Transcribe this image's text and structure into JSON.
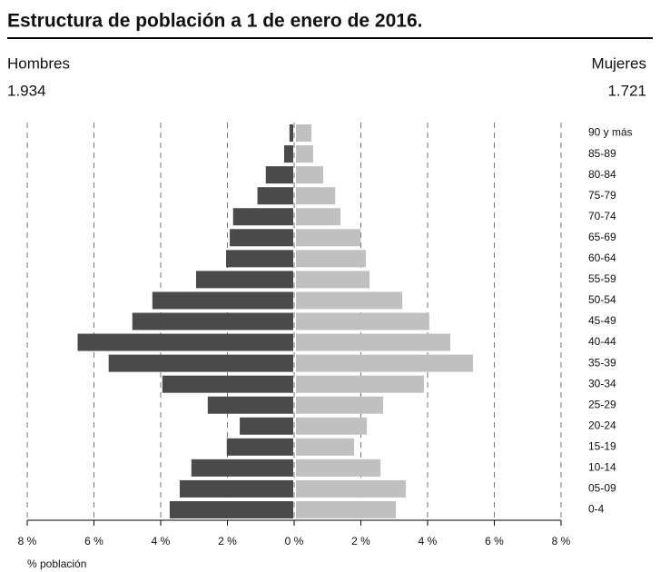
{
  "chart_data": {
    "type": "pyramid",
    "title": "Estructura de población a 1 de enero de 2016.",
    "xlabel": "% población",
    "categories": [
      "90 y más",
      "85-89",
      "80-84",
      "75-79",
      "70-74",
      "65-69",
      "60-64",
      "55-59",
      "50-54",
      "45-49",
      "40-44",
      "35-39",
      "30-34",
      "25-29",
      "20-24",
      "15-19",
      "10-14",
      "05-09",
      "0-4"
    ],
    "series": [
      {
        "name": "Hombres",
        "color": "#4a4a4a",
        "side": "left",
        "total": 1934,
        "total_label": "1.934",
        "values": [
          0.14,
          0.3,
          0.85,
          1.1,
          1.83,
          1.93,
          2.04,
          2.94,
          4.25,
          4.85,
          6.49,
          5.56,
          3.95,
          2.59,
          1.63,
          2.02,
          3.08,
          3.43,
          3.73
        ]
      },
      {
        "name": "Mujeres",
        "color": "#c0c0c0",
        "side": "right",
        "total": 1721,
        "total_label": "1.721",
        "values": [
          0.52,
          0.57,
          0.87,
          1.23,
          1.39,
          1.99,
          2.15,
          2.26,
          3.24,
          4.05,
          4.68,
          5.36,
          3.89,
          2.67,
          2.18,
          1.8,
          2.59,
          3.35,
          3.05
        ]
      }
    ],
    "xlim": [
      0,
      8
    ],
    "xticks_left": [
      {
        "value": 8,
        "label": "8 %"
      },
      {
        "value": 6,
        "label": "6 %"
      },
      {
        "value": 4,
        "label": "4 %"
      },
      {
        "value": 2,
        "label": "2 %"
      }
    ],
    "xticks_right": [
      {
        "value": 0,
        "label": "0 %"
      },
      {
        "value": 2,
        "label": "2 %"
      },
      {
        "value": 4,
        "label": "4 %"
      },
      {
        "value": 6,
        "label": "6 %"
      },
      {
        "value": 8,
        "label": "8 %"
      }
    ],
    "grid": true
  }
}
